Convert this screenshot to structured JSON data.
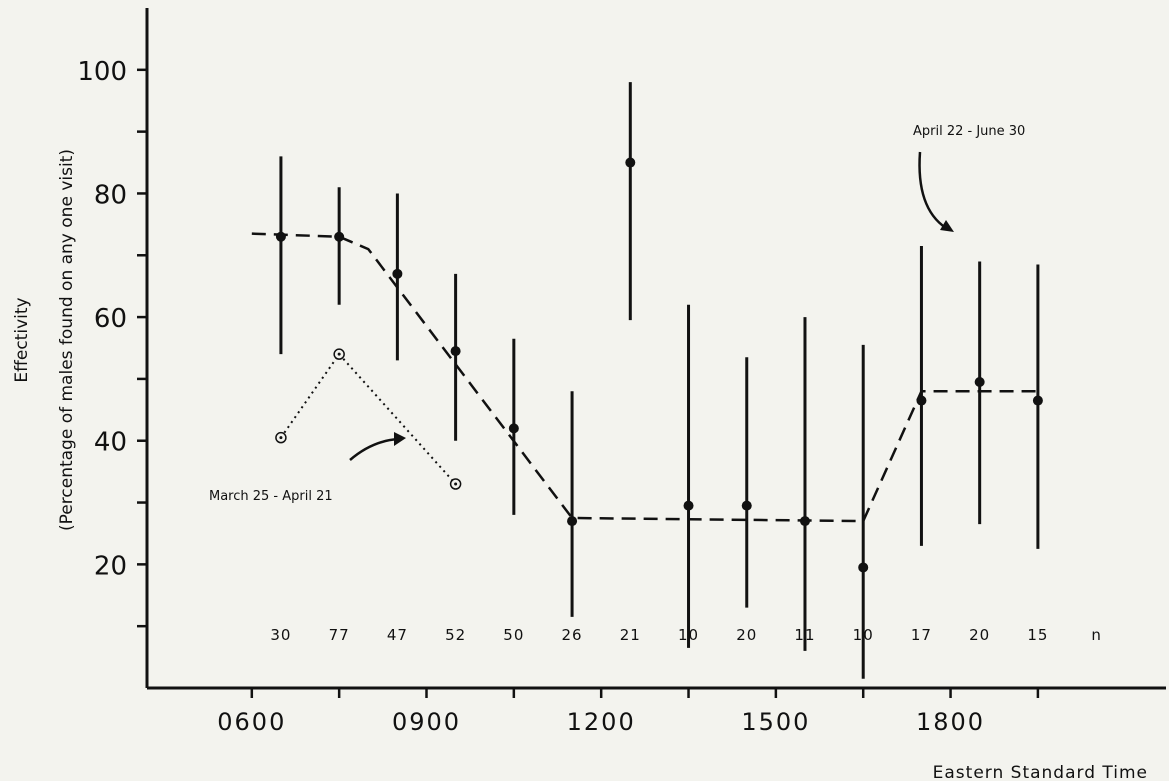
{
  "chart_data": {
    "type": "scatter",
    "xlabel": "Eastern Standard Time",
    "ylabel_line1": "Effectivity",
    "ylabel_line2": "(Percentage  of  males found on  any  one  visit)",
    "xlim": [
      420,
      2170
    ],
    "ylim": [
      0,
      110
    ],
    "x_ticks": [
      {
        "value": 600,
        "label": "0600"
      },
      {
        "value": 900,
        "label": "0900"
      },
      {
        "value": 1200,
        "label": "1200"
      },
      {
        "value": 1500,
        "label": "1500"
      },
      {
        "value": 1800,
        "label": "1800"
      }
    ],
    "x_minor_ticks": [
      750,
      1050,
      1350,
      1650,
      1950
    ],
    "y_ticks": [
      {
        "value": 100,
        "label": "100"
      },
      {
        "value": 80,
        "label": "80"
      },
      {
        "value": 60,
        "label": "60"
      },
      {
        "value": 40,
        "label": "40"
      },
      {
        "value": 20,
        "label": "20"
      }
    ],
    "y_minor_ticks": [
      90,
      70,
      50,
      30,
      10
    ],
    "sample_size_label": "n",
    "series": [
      {
        "name": "April 22 - June 30",
        "style": "filled",
        "points": [
          {
            "x": 650,
            "y": 73,
            "low": 54,
            "high": 86,
            "n": "30"
          },
          {
            "x": 750,
            "y": 73,
            "low": 62,
            "high": 81,
            "n": "77"
          },
          {
            "x": 850,
            "y": 67,
            "low": 53,
            "high": 80,
            "n": "47"
          },
          {
            "x": 950,
            "y": 54.5,
            "low": 40,
            "high": 67,
            "n": "52"
          },
          {
            "x": 1050,
            "y": 42,
            "low": 28,
            "high": 56.5,
            "n": "50"
          },
          {
            "x": 1150,
            "y": 27,
            "low": 11.5,
            "high": 48,
            "n": "26"
          },
          {
            "x": 1250,
            "y": 85,
            "low": 59.5,
            "high": 98,
            "n": "21"
          },
          {
            "x": 1350,
            "y": 29.5,
            "low": 6.5,
            "high": 62,
            "n": "10"
          },
          {
            "x": 1450,
            "y": 29.5,
            "low": 13,
            "high": 53.5,
            "n": "20"
          },
          {
            "x": 1550,
            "y": 27,
            "low": 6,
            "high": 60,
            "n": "11"
          },
          {
            "x": 1650,
            "y": 19.5,
            "low": 1.5,
            "high": 55.5,
            "n": "10"
          },
          {
            "x": 1750,
            "y": 46.5,
            "low": 23,
            "high": 71.5,
            "n": "17"
          },
          {
            "x": 1850,
            "y": 49.5,
            "low": 26.5,
            "high": 69,
            "n": "20"
          },
          {
            "x": 1950,
            "y": 46.5,
            "low": 22.5,
            "high": 68.5,
            "n": "15"
          }
        ],
        "fit_line": [
          [
            600,
            73.5
          ],
          [
            750,
            73
          ],
          [
            800,
            71
          ],
          [
            1150,
            27.5
          ],
          [
            1650,
            27
          ],
          [
            1750,
            48
          ],
          [
            1950,
            48
          ]
        ]
      },
      {
        "name": "March 25 - April 21",
        "style": "open",
        "points": [
          {
            "x": 650,
            "y": 40.5
          },
          {
            "x": 750,
            "y": 54
          },
          {
            "x": 950,
            "y": 33
          }
        ]
      }
    ],
    "annotations": [
      {
        "text": "April 22 - June 30"
      },
      {
        "text": "March 25 - April 21"
      }
    ]
  }
}
